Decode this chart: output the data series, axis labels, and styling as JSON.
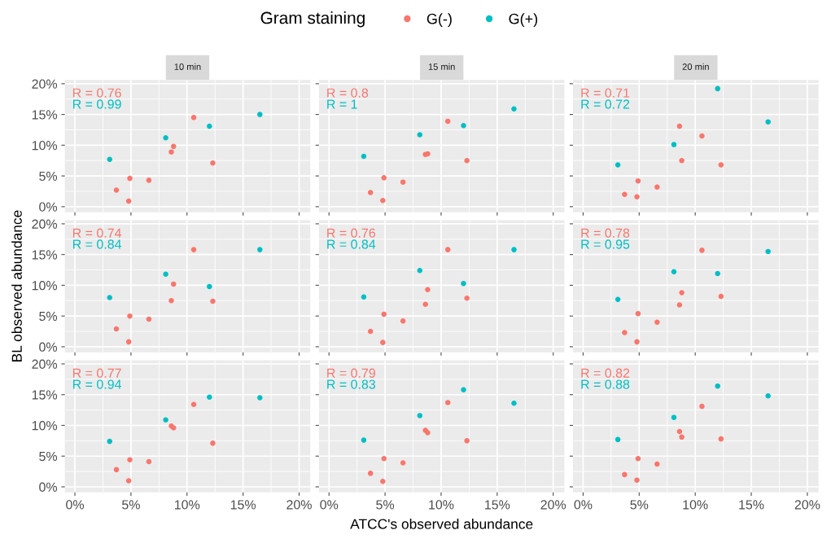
{
  "chart_data": [
    {
      "type": "scatter",
      "title": "10 min",
      "legend": "top",
      "legend_title": "Gram staining",
      "x": [
        3.7,
        4.8,
        4.9,
        6.6,
        8.6,
        8.8,
        10.6,
        12.3
      ],
      "tick_labels": "y",
      "grid": true,
      "marker": "circle",
      "xlim": [
        -0.9,
        21
      ],
      "ylim": [
        -0.9,
        20.6
      ],
      "xticks": [
        {
          "value": 0,
          "label": "0%"
        },
        {
          "value": 5,
          "label": "5%"
        },
        {
          "value": 10,
          "label": "10%"
        },
        {
          "value": 15,
          "label": "15%"
        },
        {
          "value": 20,
          "label": "20%"
        }
      ],
      "yticks": [
        {
          "value": 0,
          "label": "0%"
        },
        {
          "value": 5,
          "label": "5%"
        },
        {
          "value": 10,
          "label": "10%"
        },
        {
          "value": 15,
          "label": "15%"
        },
        {
          "value": 20,
          "label": "20%"
        }
      ],
      "annotations": [
        "R = 0.76",
        "R = 0.99"
      ],
      "series": [
        {
          "name": "G(-)",
          "color": "#f8766d",
          "values": [
            2.7,
            0.9,
            4.6,
            4.3,
            8.9,
            9.8,
            14.5,
            7.1
          ]
        },
        {
          "name": "G(+)",
          "color": "#00bfc4",
          "x": [
            3.1,
            8.1,
            12.0,
            16.5
          ],
          "values": [
            7.7,
            11.2,
            13.1,
            15.0
          ]
        }
      ]
    },
    {
      "type": "scatter",
      "title": "15 min",
      "x": [
        3.7,
        4.8,
        4.9,
        6.6,
        8.6,
        8.8,
        10.6,
        12.3
      ],
      "tick_labels": false,
      "grid": true,
      "marker": "circle",
      "xlim": [
        -0.9,
        21
      ],
      "ylim": [
        -0.9,
        20.6
      ],
      "xticks": [
        {
          "value": 0,
          "label": "0%"
        },
        {
          "value": 5,
          "label": "5%"
        },
        {
          "value": 10,
          "label": "10%"
        },
        {
          "value": 15,
          "label": "15%"
        },
        {
          "value": 20,
          "label": "20%"
        }
      ],
      "yticks": [
        {
          "value": 0,
          "label": "0%"
        },
        {
          "value": 5,
          "label": "5%"
        },
        {
          "value": 10,
          "label": "10%"
        },
        {
          "value": 15,
          "label": "15%"
        },
        {
          "value": 20,
          "label": "20%"
        }
      ],
      "annotations": [
        "R = 0.8",
        "R = 1"
      ],
      "series": [
        {
          "name": "G(-)",
          "color": "#f8766d",
          "values": [
            2.3,
            1.0,
            4.7,
            4.0,
            8.5,
            8.6,
            13.9,
            7.5
          ]
        },
        {
          "name": "G(+)",
          "color": "#00bfc4",
          "x": [
            3.1,
            8.1,
            12.0,
            16.5
          ],
          "values": [
            8.2,
            11.7,
            13.2,
            15.9
          ]
        }
      ]
    },
    {
      "type": "scatter",
      "title": "20 min",
      "x": [
        3.7,
        4.8,
        4.9,
        6.6,
        8.6,
        8.8,
        10.6,
        12.3
      ],
      "tick_labels": false,
      "grid": true,
      "marker": "circle",
      "xlim": [
        -0.9,
        21
      ],
      "ylim": [
        -0.9,
        20.6
      ],
      "xticks": [
        {
          "value": 0,
          "label": "0%"
        },
        {
          "value": 5,
          "label": "5%"
        },
        {
          "value": 10,
          "label": "10%"
        },
        {
          "value": 15,
          "label": "15%"
        },
        {
          "value": 20,
          "label": "20%"
        }
      ],
      "yticks": [
        {
          "value": 0,
          "label": "0%"
        },
        {
          "value": 5,
          "label": "5%"
        },
        {
          "value": 10,
          "label": "10%"
        },
        {
          "value": 15,
          "label": "15%"
        },
        {
          "value": 20,
          "label": "20%"
        }
      ],
      "annotations": [
        "R = 0.71",
        "R = 0.72"
      ],
      "series": [
        {
          "name": "G(-)",
          "color": "#f8766d",
          "values": [
            2.0,
            1.6,
            4.2,
            3.2,
            13.1,
            7.5,
            11.5,
            6.8
          ]
        },
        {
          "name": "G(+)",
          "color": "#00bfc4",
          "x": [
            3.1,
            8.1,
            12.0,
            16.5
          ],
          "values": [
            6.8,
            10.1,
            19.2,
            13.8
          ]
        }
      ]
    },
    {
      "type": "scatter",
      "ylabel": "BL observed abundance",
      "x": [
        3.7,
        4.8,
        4.9,
        6.6,
        8.6,
        8.8,
        10.6,
        12.3
      ],
      "tick_labels": "y",
      "grid": true,
      "marker": "circle",
      "xlim": [
        -0.9,
        21
      ],
      "ylim": [
        -0.9,
        20.6
      ],
      "xticks": [
        {
          "value": 0,
          "label": "0%"
        },
        {
          "value": 5,
          "label": "5%"
        },
        {
          "value": 10,
          "label": "10%"
        },
        {
          "value": 15,
          "label": "15%"
        },
        {
          "value": 20,
          "label": "20%"
        }
      ],
      "yticks": [
        {
          "value": 0,
          "label": "0%"
        },
        {
          "value": 5,
          "label": "5%"
        },
        {
          "value": 10,
          "label": "10%"
        },
        {
          "value": 15,
          "label": "15%"
        },
        {
          "value": 20,
          "label": "20%"
        }
      ],
      "annotations": [
        "R = 0.74",
        "R = 0.84"
      ],
      "series": [
        {
          "name": "G(-)",
          "color": "#f8766d",
          "values": [
            2.9,
            0.8,
            5.0,
            4.5,
            7.5,
            10.2,
            15.8,
            7.4
          ]
        },
        {
          "name": "G(+)",
          "color": "#00bfc4",
          "x": [
            3.1,
            8.1,
            12.0,
            16.5
          ],
          "values": [
            8.0,
            11.8,
            9.8,
            15.8
          ]
        }
      ]
    },
    {
      "type": "scatter",
      "x": [
        3.7,
        4.8,
        4.9,
        6.6,
        8.6,
        8.8,
        10.6,
        12.3
      ],
      "tick_labels": false,
      "grid": true,
      "marker": "circle",
      "xlim": [
        -0.9,
        21
      ],
      "ylim": [
        -0.9,
        20.6
      ],
      "xticks": [
        {
          "value": 0,
          "label": "0%"
        },
        {
          "value": 5,
          "label": "5%"
        },
        {
          "value": 10,
          "label": "10%"
        },
        {
          "value": 15,
          "label": "15%"
        },
        {
          "value": 20,
          "label": "20%"
        }
      ],
      "yticks": [
        {
          "value": 0,
          "label": "0%"
        },
        {
          "value": 5,
          "label": "5%"
        },
        {
          "value": 10,
          "label": "10%"
        },
        {
          "value": 15,
          "label": "15%"
        },
        {
          "value": 20,
          "label": "20%"
        }
      ],
      "annotations": [
        "R = 0.76",
        "R = 0.84"
      ],
      "series": [
        {
          "name": "G(-)",
          "color": "#f8766d",
          "values": [
            2.5,
            0.7,
            5.3,
            4.2,
            6.9,
            9.3,
            15.8,
            7.9
          ]
        },
        {
          "name": "G(+)",
          "color": "#00bfc4",
          "x": [
            3.1,
            8.1,
            12.0,
            16.5
          ],
          "values": [
            8.1,
            12.4,
            10.3,
            15.8
          ]
        }
      ]
    },
    {
      "type": "scatter",
      "x": [
        3.7,
        4.8,
        4.9,
        6.6,
        8.6,
        8.8,
        10.6,
        12.3
      ],
      "tick_labels": false,
      "grid": true,
      "marker": "circle",
      "xlim": [
        -0.9,
        21
      ],
      "ylim": [
        -0.9,
        20.6
      ],
      "xticks": [
        {
          "value": 0,
          "label": "0%"
        },
        {
          "value": 5,
          "label": "5%"
        },
        {
          "value": 10,
          "label": "10%"
        },
        {
          "value": 15,
          "label": "15%"
        },
        {
          "value": 20,
          "label": "20%"
        }
      ],
      "yticks": [
        {
          "value": 0,
          "label": "0%"
        },
        {
          "value": 5,
          "label": "5%"
        },
        {
          "value": 10,
          "label": "10%"
        },
        {
          "value": 15,
          "label": "15%"
        },
        {
          "value": 20,
          "label": "20%"
        }
      ],
      "annotations": [
        "R = 0.78",
        "R = 0.95"
      ],
      "series": [
        {
          "name": "G(-)",
          "color": "#f8766d",
          "values": [
            2.3,
            0.8,
            5.4,
            4.0,
            6.8,
            8.8,
            15.7,
            8.2
          ]
        },
        {
          "name": "G(+)",
          "color": "#00bfc4",
          "x": [
            3.1,
            8.1,
            12.0,
            16.5
          ],
          "values": [
            7.7,
            12.2,
            11.9,
            15.5
          ]
        }
      ]
    },
    {
      "type": "scatter",
      "x": [
        3.7,
        4.8,
        4.9,
        6.6,
        8.6,
        8.8,
        10.6,
        12.3
      ],
      "grid": true,
      "marker": "circle",
      "xlim": [
        -0.9,
        21
      ],
      "ylim": [
        -0.9,
        20.6
      ],
      "xticks": [
        {
          "value": 0,
          "label": "0%"
        },
        {
          "value": 5,
          "label": "5%"
        },
        {
          "value": 10,
          "label": "10%"
        },
        {
          "value": 15,
          "label": "15%"
        },
        {
          "value": 20,
          "label": "20%"
        }
      ],
      "yticks": [
        {
          "value": 0,
          "label": "0%"
        },
        {
          "value": 5,
          "label": "5%"
        },
        {
          "value": 10,
          "label": "10%"
        },
        {
          "value": 15,
          "label": "15%"
        },
        {
          "value": 20,
          "label": "20%"
        }
      ],
      "annotations": [
        "R = 0.77",
        "R = 0.94"
      ],
      "series": [
        {
          "name": "G(-)",
          "color": "#f8766d",
          "values": [
            2.8,
            1.0,
            4.4,
            4.1,
            9.9,
            9.6,
            13.4,
            7.1
          ]
        },
        {
          "name": "G(+)",
          "color": "#00bfc4",
          "x": [
            3.1,
            8.1,
            12.0,
            16.5
          ],
          "values": [
            7.4,
            10.9,
            14.6,
            14.5
          ]
        }
      ]
    },
    {
      "type": "scatter",
      "xlabel": "ATCC's observed abundance",
      "x": [
        3.7,
        4.8,
        4.9,
        6.6,
        8.6,
        8.8,
        10.6,
        12.3
      ],
      "tick_labels": "x",
      "grid": true,
      "marker": "circle",
      "xlim": [
        -0.9,
        21
      ],
      "ylim": [
        -0.9,
        20.6
      ],
      "xticks": [
        {
          "value": 0,
          "label": "0%"
        },
        {
          "value": 5,
          "label": "5%"
        },
        {
          "value": 10,
          "label": "10%"
        },
        {
          "value": 15,
          "label": "15%"
        },
        {
          "value": 20,
          "label": "20%"
        }
      ],
      "yticks": [
        {
          "value": 0,
          "label": "0%"
        },
        {
          "value": 5,
          "label": "5%"
        },
        {
          "value": 10,
          "label": "10%"
        },
        {
          "value": 15,
          "label": "15%"
        },
        {
          "value": 20,
          "label": "20%"
        }
      ],
      "annotations": [
        "R = 0.79",
        "R = 0.83"
      ],
      "series": [
        {
          "name": "G(-)",
          "color": "#f8766d",
          "values": [
            2.2,
            0.9,
            4.6,
            3.9,
            9.2,
            8.8,
            13.7,
            7.5
          ]
        },
        {
          "name": "G(+)",
          "color": "#00bfc4",
          "x": [
            3.1,
            8.1,
            12.0,
            16.5
          ],
          "values": [
            7.6,
            11.6,
            15.8,
            13.6
          ]
        }
      ]
    },
    {
      "type": "scatter",
      "x": [
        3.7,
        4.8,
        4.9,
        6.6,
        8.6,
        8.8,
        10.6,
        12.3
      ],
      "tick_labels": "x",
      "grid": true,
      "marker": "circle",
      "xlim": [
        -0.9,
        21
      ],
      "ylim": [
        -0.9,
        20.6
      ],
      "xticks": [
        {
          "value": 0,
          "label": "0%"
        },
        {
          "value": 5,
          "label": "5%"
        },
        {
          "value": 10,
          "label": "10%"
        },
        {
          "value": 15,
          "label": "15%"
        },
        {
          "value": 20,
          "label": "20%"
        }
      ],
      "yticks": [
        {
          "value": 0,
          "label": "0%"
        },
        {
          "value": 5,
          "label": "5%"
        },
        {
          "value": 10,
          "label": "10%"
        },
        {
          "value": 15,
          "label": "15%"
        },
        {
          "value": 20,
          "label": "20%"
        }
      ],
      "annotations": [
        "R = 0.82",
        "R = 0.88"
      ],
      "series": [
        {
          "name": "G(-)",
          "color": "#f8766d",
          "values": [
            2.0,
            1.1,
            4.6,
            3.7,
            9.0,
            8.1,
            13.1,
            7.8
          ]
        },
        {
          "name": "G(+)",
          "color": "#00bfc4",
          "x": [
            3.1,
            8.1,
            12.0,
            16.5
          ],
          "values": [
            7.7,
            11.3,
            16.4,
            14.8
          ]
        }
      ]
    }
  ]
}
